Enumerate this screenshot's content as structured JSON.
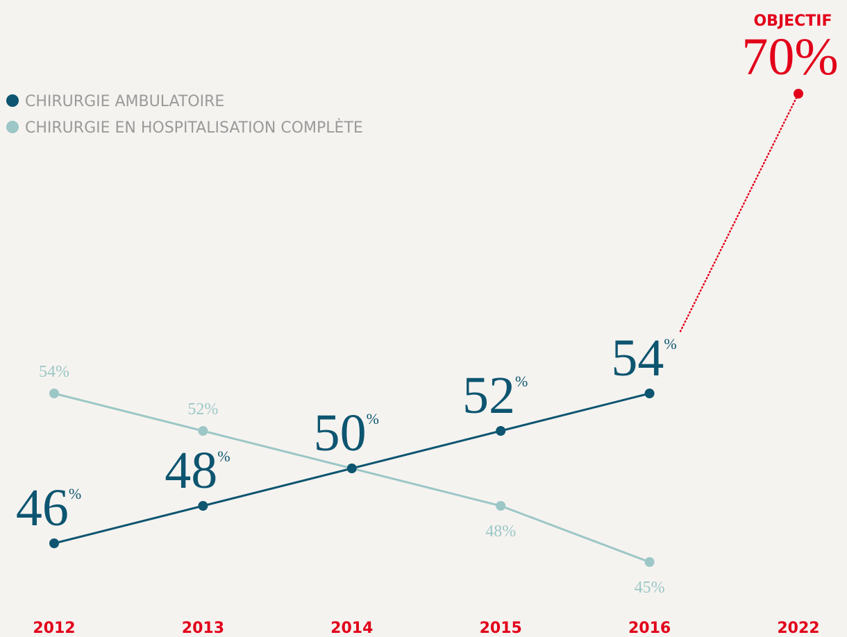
{
  "chart_data": {
    "type": "line",
    "categories": [
      "2012",
      "2013",
      "2014",
      "2015",
      "2016",
      "2022"
    ],
    "series": [
      {
        "name": "CHIRURGIE AMBULATOIRE",
        "color": "#0d5570",
        "values": [
          46,
          48,
          50,
          52,
          54,
          null
        ],
        "value_labels": [
          "46%",
          "48%",
          "50%",
          "52%",
          "54%",
          null
        ]
      },
      {
        "name": "CHIRURGIE EN HOSPITALISATION COMPLÈTE",
        "color": "#9cc7c6",
        "values": [
          54,
          52,
          50,
          48,
          45,
          null
        ],
        "value_labels": [
          "54%",
          "52%",
          null,
          "48%",
          "45%",
          null
        ]
      }
    ],
    "target": {
      "label": "OBJECTIF",
      "value": 70,
      "value_label": "70%",
      "color": "#e2001a"
    },
    "category_color": "#e2001a"
  }
}
